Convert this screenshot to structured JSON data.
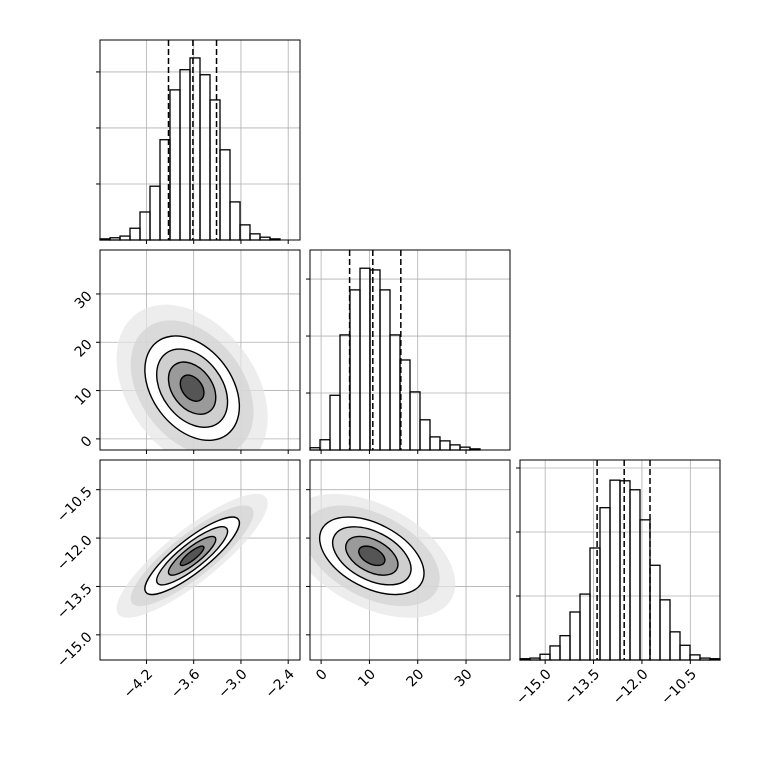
{
  "chart_data": {
    "type": "corner",
    "parameters": [
      {
        "xlim": [
          -4.79,
          -2.25
        ],
        "mean": -3.62,
        "sd": 0.3,
        "ticks": [
          {
            "value": -4.2,
            "label": "−4.2"
          },
          {
            "value": -3.6,
            "label": "−3.6"
          },
          {
            "value": -3.0,
            "label": "−3.0"
          },
          {
            "value": -2.4,
            "label": "−2.4"
          }
        ],
        "quantiles": [
          -3.92,
          -3.61,
          -3.31
        ],
        "histogram": {
          "bins": [
            -4.79,
            -4.663,
            -4.536,
            -4.409,
            -4.282,
            -4.155,
            -4.028,
            -3.901,
            -3.774,
            -3.647,
            -3.52,
            -3.393,
            -3.266,
            -3.139,
            -3.012,
            -2.885,
            -2.758,
            -2.631,
            -2.504,
            -2.377,
            -2.25
          ],
          "values": [
            0.02,
            0.04,
            0.07,
            0.21,
            0.5,
            0.96,
            1.79,
            2.68,
            3.04,
            3.25,
            2.95,
            2.5,
            1.61,
            0.68,
            0.27,
            0.11,
            0.05,
            0.02,
            0,
            0
          ],
          "ylim": [
            0,
            3.57
          ],
          "yticks": [
            1,
            2,
            3
          ]
        }
      },
      {
        "xlim": [
          -2.3,
          39.1
        ],
        "mean": 10.5,
        "sd": 5.4,
        "ticks": [
          0,
          10,
          20,
          30
        ],
        "quantiles": [
          5.9,
          10.7,
          16.5
        ],
        "histogram": {
          "bins": [
            -2.3,
            -0.23,
            1.84,
            3.91,
            5.98,
            8.05,
            10.12,
            12.19,
            14.26,
            16.33,
            18.4,
            20.47,
            22.54,
            24.61,
            26.68,
            28.75,
            30.82,
            32.89,
            34.96,
            37.03,
            39.1
          ],
          "values": [
            0.04,
            0.18,
            0.96,
            2.02,
            2.81,
            3.19,
            3.16,
            2.81,
            2.02,
            1.58,
            1.02,
            0.53,
            0.23,
            0.16,
            0.09,
            0.05,
            0.02,
            0,
            0,
            0
          ],
          "ylim": [
            0,
            3.51
          ],
          "yticks": [
            1,
            2,
            3
          ]
        }
      },
      {
        "xlim": [
          -15.78,
          -9.58
        ],
        "mean": -12.55,
        "sd": 0.6,
        "ticks": [
          {
            "value": -15.0,
            "label": "−15.0"
          },
          {
            "value": -13.5,
            "label": "−13.5"
          },
          {
            "value": -12.0,
            "label": "−12.0"
          },
          {
            "value": -10.5,
            "label": "−10.5"
          }
        ],
        "quantiles": [
          -13.39,
          -12.55,
          -11.75
        ],
        "histogram": {
          "bins": [
            -15.78,
            -15.47,
            -15.16,
            -14.85,
            -14.54,
            -14.23,
            -13.92,
            -13.61,
            -13.3,
            -12.99,
            -12.68,
            -12.37,
            -12.06,
            -11.75,
            -11.44,
            -11.13,
            -10.82,
            -10.51,
            -10.2,
            -9.89,
            -9.58
          ],
          "values": [
            0.02,
            0.03,
            0.09,
            0.22,
            0.38,
            0.75,
            1.03,
            1.75,
            2.38,
            2.81,
            2.8,
            2.66,
            2.19,
            1.48,
            0.94,
            0.44,
            0.23,
            0.08,
            0.03,
            0.02
          ],
          "ylim": [
            0,
            3.125
          ],
          "yticks": [
            1,
            2,
            3
          ]
        }
      }
    ],
    "pairs": [
      {
        "x": 0,
        "y": 1,
        "corr": -0.35
      },
      {
        "x": 0,
        "y": 2,
        "corr": 0.85
      },
      {
        "x": 1,
        "y": 2,
        "corr": -0.45
      }
    ],
    "contour_levels": [
      0.5,
      1,
      1.5,
      2
    ],
    "grid": true
  }
}
